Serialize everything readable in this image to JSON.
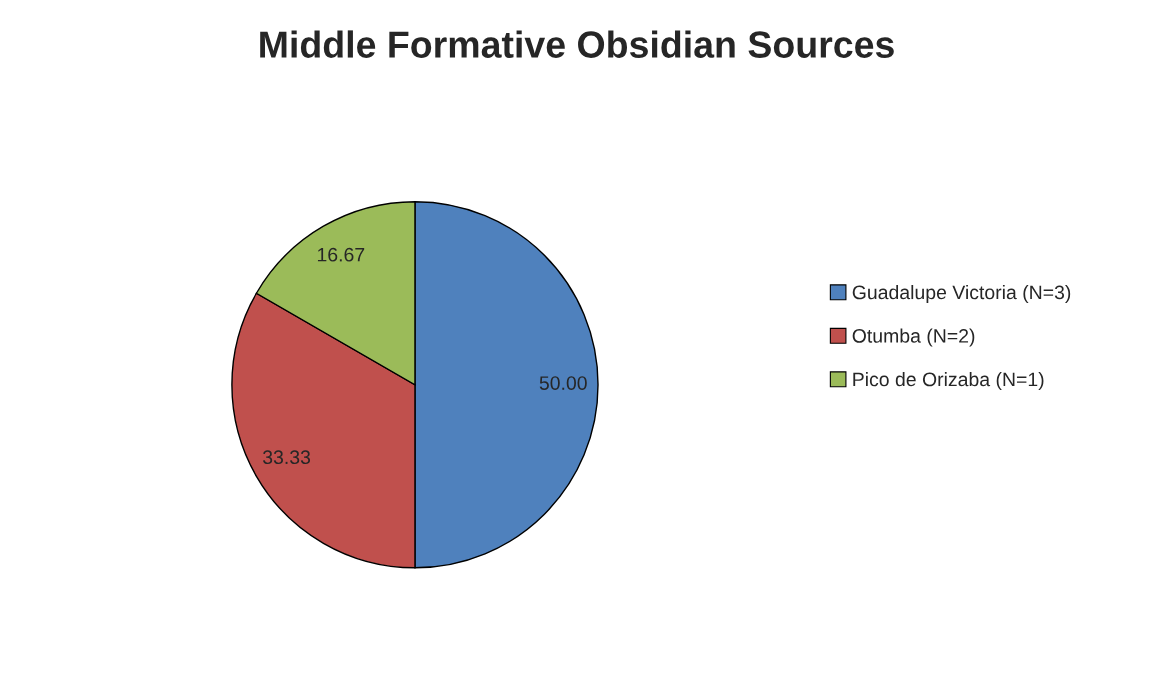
{
  "chart_data": {
    "type": "pie",
    "title": "Middle Formative Obsidian Sources",
    "categories": [
      "Guadalupe Victoria (N=3)",
      "Otumba (N=2)",
      "Pico de Orizaba (N=1)"
    ],
    "values": [
      50.0,
      33.33,
      16.67
    ],
    "value_labels": [
      "50.00",
      "33.33",
      "16.67"
    ],
    "colors": [
      "#4f81bd",
      "#c0504d",
      "#9bbb59"
    ],
    "legend": "right"
  }
}
